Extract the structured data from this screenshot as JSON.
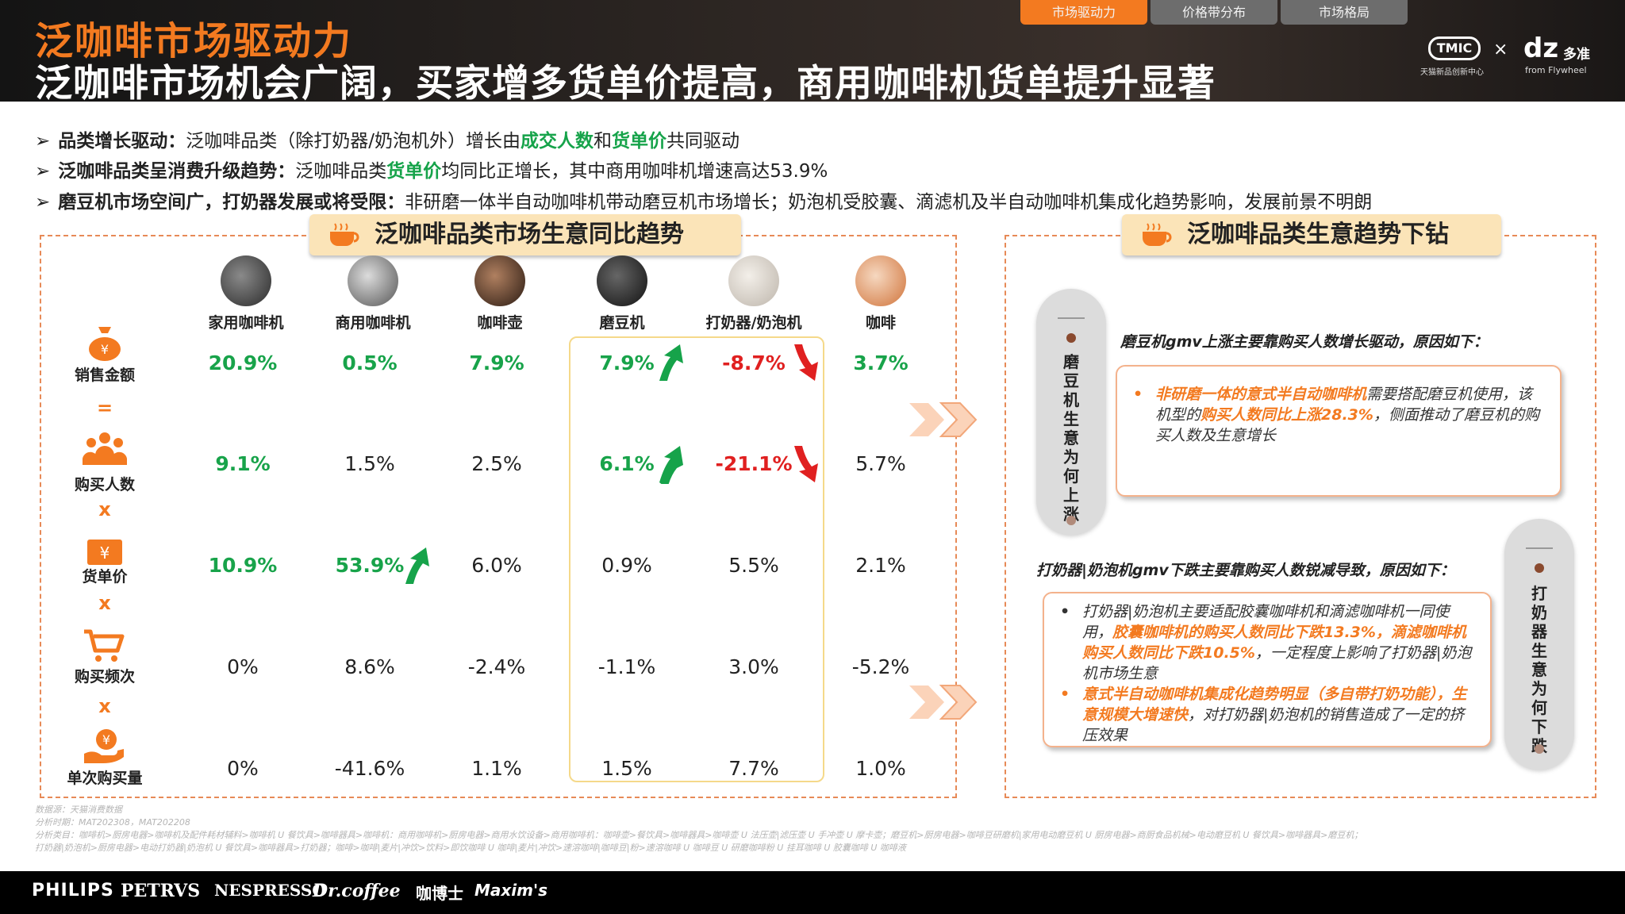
{
  "header": {
    "kicker": "泛咖啡市场驱动力",
    "headline": "泛咖啡市场机会广阔，买家增多货单价提高，商用咖啡机货单提升显著",
    "tabs": [
      {
        "label": "市场驱动力",
        "active": true
      },
      {
        "label": "价格带分布",
        "active": false
      },
      {
        "label": "市场格局",
        "active": false
      }
    ],
    "brand": {
      "tmic": "TMIC",
      "tmic_sub": "天猫新品创新中心",
      "times": "×",
      "dz": "dz",
      "dz_cn": "多准",
      "dz_sub": "from Flywheel"
    }
  },
  "bullets": [
    {
      "mark": "➢",
      "bold": "品类增长驱动：",
      "t1": "泛咖啡品类（除打奶器/奶泡机外）增长由",
      "g1": "成交人数",
      "t2": "和",
      "g2": "货单价",
      "t3": "共同驱动"
    },
    {
      "mark": "➢",
      "bold": "泛咖啡品类呈消费升级趋势：",
      "t1": "泛咖啡品类",
      "g1": "货单价",
      "t2": "均同比正增长，其中商用咖啡机增速高达53.9%"
    },
    {
      "mark": "➢",
      "bold": "磨豆机市场空间广，打奶器发展或将受限：",
      "t1": "非研磨一体半自动咖啡机带动磨豆机市场增长；奶泡机受胶囊、滴滤机及半自动咖啡机集成化趋势影响，发展前景不明朗"
    }
  ],
  "left_panel": {
    "title": "泛咖啡品类市场生意同比趋势",
    "columns": [
      "家用咖啡机",
      "商用咖啡机",
      "咖啡壶",
      "磨豆机",
      "打奶器/奶泡机",
      "咖啡"
    ],
    "rows": [
      {
        "label": "销售金额",
        "icon": "money-bag-icon",
        "op": "=",
        "values": [
          "20.9%",
          "0.5%",
          "7.9%",
          "7.9%",
          "-8.7%",
          "3.7%"
        ],
        "styles": [
          "up",
          "up",
          "up",
          "up",
          "down",
          "up"
        ]
      },
      {
        "label": "购买人数",
        "icon": "people-icon",
        "op": "x",
        "values": [
          "9.1%",
          "1.5%",
          "2.5%",
          "6.1%",
          "-21.1%",
          "5.7%"
        ],
        "styles": [
          "up",
          "",
          "",
          "up",
          "down",
          ""
        ]
      },
      {
        "label": "货单价",
        "icon": "price-tag-icon",
        "op": "x",
        "values": [
          "10.9%",
          "53.9%",
          "6.0%",
          "0.9%",
          "5.5%",
          "2.1%"
        ],
        "styles": [
          "up",
          "up",
          "",
          "",
          "",
          ""
        ]
      },
      {
        "label": "购买频次",
        "icon": "cart-icon",
        "op": "x",
        "values": [
          "0%",
          "8.6%",
          "-2.4%",
          "-1.1%",
          "3.0%",
          "-5.2%"
        ],
        "styles": [
          "",
          "",
          "",
          "",
          "",
          ""
        ]
      },
      {
        "label": "单次购买量",
        "icon": "hand-money-icon",
        "op": "",
        "values": [
          "0%",
          "-41.6%",
          "1.1%",
          "1.5%",
          "7.7%",
          "1.0%"
        ],
        "styles": [
          "",
          "",
          "",
          "",
          "",
          ""
        ]
      }
    ]
  },
  "right_panel": {
    "title": "泛咖啡品类生意趋势下钻",
    "pill1": "磨豆机生意为何上涨",
    "pill2": "打奶器生意为何下跌",
    "head1": "磨豆机gmv上涨主要靠购买人数增长驱动，原因如下：",
    "box1": {
      "o1": "非研磨一体的意式半自动咖啡机",
      "t1": "需要搭配磨豆机使用，该机型的",
      "o2": "购买人数同比上涨28.3%",
      "t2": "，侧面推动了磨豆机的购买人数及生意增长"
    },
    "head2": "打奶器|奶泡机gmv下跌主要靠购买人数锐减导致，原因如下：",
    "box2": {
      "p1_t1": "打奶器|奶泡机主要适配胶囊咖啡机和滴滤咖啡机一同使用，",
      "p1_o1": "胶囊咖啡机的购买人数同比下跌13.3%，滴滤咖啡机购买人数同比下跌10.5%",
      "p1_t2": "，一定程度上影响了打奶器|奶泡机市场生意",
      "p2_o1": "意式半自动咖啡机集成化趋势明显（多自带打奶功能），生意规模大增速快",
      "p2_t1": "，对打奶器|奶泡机的销售造成了一定的挤压效果"
    }
  },
  "footnotes": [
    "数据源：天猫消费数据",
    "分析时期：MAT202308，MAT202208",
    "分析类目：咖啡机>厨房电器>咖啡机及配件耗材辅料>咖啡机 U 餐饮具>咖啡器具>咖啡机：商用咖啡机>厨房电器>商用水饮设备>商用咖啡机：咖啡壶>餐饮具>咖啡器具>咖啡壶 U 法压壶|滤压壶 U 手冲壶 U 摩卡壶；磨豆机>厨房电器>咖啡豆研磨机|家用电动磨豆机 U 厨房电器>商厨食品机械>电动磨豆机 U 餐饮具>咖啡器具>磨豆机；",
    "打奶器|奶泡机>厨房电器>电动打奶器|奶泡机 U 餐饮具>咖啡器具>打奶器；咖啡>咖啡|麦片|冲饮>饮料>即饮咖啡 U 咖啡|麦片|冲饮>速溶咖啡|咖啡豆|粉>速溶咖啡 U 咖啡豆 U 研磨咖啡粉 U 挂耳咖啡 U 胶囊咖啡 U 咖啡液"
  ],
  "footer_brands": [
    "PHILIPS",
    "PETRVS",
    "NESPRESSO",
    "Dr.coffee",
    "咖博士",
    "Maxim's"
  ]
}
